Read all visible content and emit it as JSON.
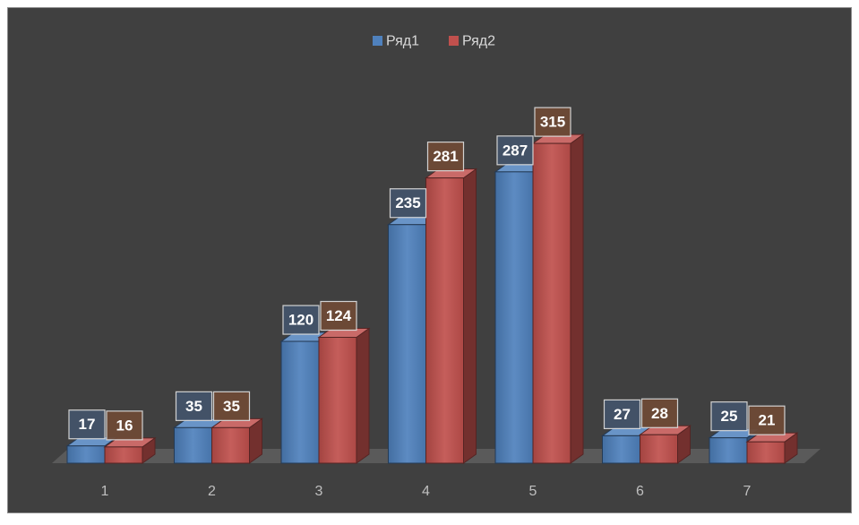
{
  "chart_data": {
    "type": "bar3d",
    "categories": [
      "1",
      "2",
      "3",
      "4",
      "5",
      "6",
      "7"
    ],
    "series": [
      {
        "name": "Ряд1",
        "color": "#4f81bd",
        "values": [
          17,
          35,
          120,
          235,
          287,
          27,
          25
        ]
      },
      {
        "name": "Ряд2",
        "color": "#c0504d",
        "values": [
          16,
          35,
          124,
          281,
          315,
          28,
          21
        ]
      }
    ],
    "legend": "top",
    "data_labels": true
  }
}
